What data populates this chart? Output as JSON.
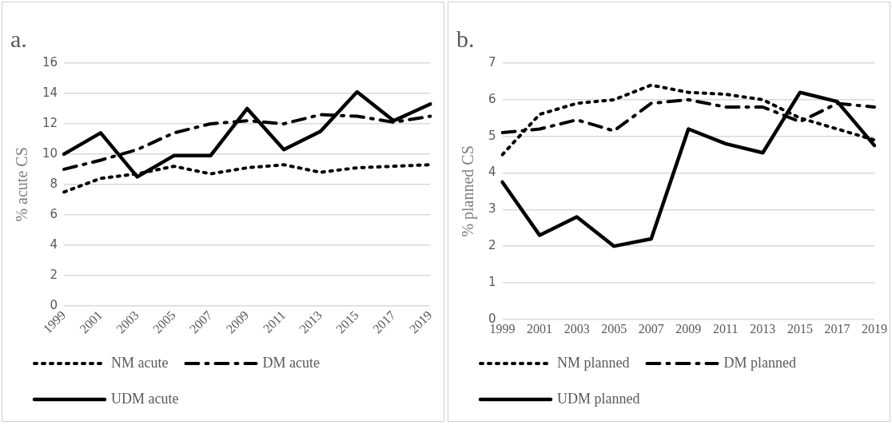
{
  "chart_data": [
    {
      "type": "line",
      "title": "a.",
      "ylabel": "% acute CS",
      "categories": [
        "1999",
        "2001",
        "2003",
        "2005",
        "2007",
        "2009",
        "2011",
        "2013",
        "2015",
        "2017",
        "2019"
      ],
      "ylim": [
        0,
        16
      ],
      "yticks": [
        0,
        2,
        4,
        6,
        8,
        10,
        12,
        14,
        16
      ],
      "grid": "y",
      "legend": "bottom",
      "marker": "none",
      "series": [
        {
          "name": "NM acute",
          "color": "#000000",
          "line_style": "dotted",
          "values": [
            7.5,
            8.4,
            8.7,
            9.2,
            8.7,
            9.1,
            9.3,
            8.8,
            9.1,
            9.2,
            9.3
          ]
        },
        {
          "name": "DM acute",
          "color": "#000000",
          "line_style": "dashed",
          "values": [
            9,
            9.6,
            10.3,
            11.4,
            12,
            12.2,
            12,
            12.6,
            12.5,
            12.1,
            12.5
          ]
        },
        {
          "name": "UDM acute",
          "color": "#000000",
          "line_style": "solid",
          "values": [
            10,
            11.4,
            8.5,
            9.9,
            9.9,
            13,
            10.3,
            11.5,
            14.1,
            12.2,
            13.3
          ]
        }
      ]
    },
    {
      "type": "line",
      "title": "b.",
      "ylabel": "% planned CS",
      "categories": [
        "1999",
        "2001",
        "2003",
        "2005",
        "2007",
        "2009",
        "2011",
        "2013",
        "2015",
        "2017",
        "2019"
      ],
      "ylim": [
        0,
        7
      ],
      "yticks": [
        0,
        1,
        2,
        3,
        4,
        5,
        6,
        7
      ],
      "grid": "y",
      "legend": "bottom",
      "marker": "none",
      "series": [
        {
          "name": "NM planned",
          "color": "#000000",
          "line_style": "dotted",
          "values": [
            4.5,
            5.6,
            5.9,
            6.0,
            6.4,
            6.2,
            6.15,
            6.0,
            5.5,
            5.2,
            4.9
          ]
        },
        {
          "name": "DM planned",
          "color": "#000000",
          "line_style": "dashed",
          "values": [
            5.1,
            5.2,
            5.45,
            5.15,
            5.9,
            6.0,
            5.8,
            5.8,
            5.4,
            5.9,
            5.8
          ]
        },
        {
          "name": "UDM planned",
          "color": "#000000",
          "line_style": "solid",
          "values": [
            3.75,
            2.3,
            2.8,
            2.0,
            2.2,
            5.2,
            4.8,
            4.55,
            6.2,
            5.95,
            4.75
          ]
        }
      ]
    }
  ]
}
